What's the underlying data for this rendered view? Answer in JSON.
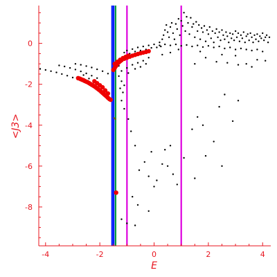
{
  "chart_data": {
    "type": "scatter",
    "xlabel": "E",
    "ylabel": "<J3>",
    "xlim": [
      -4.25,
      4.3
    ],
    "ylim": [
      -9.9,
      1.85
    ],
    "x_ticks": [
      "-4",
      "-2",
      "0",
      "2",
      "4"
    ],
    "x_tick_values": [
      -4,
      -2,
      0,
      2,
      4
    ],
    "y_ticks": [
      "0",
      "-2",
      "-4",
      "-6",
      "-8"
    ],
    "y_tick_values": [
      0,
      -2,
      -4,
      -6,
      -8
    ],
    "grid": false,
    "vertical_lines": [
      {
        "x": -1.55,
        "color": "#0018ff"
      },
      {
        "x": -1.49,
        "color": "#0018ff"
      },
      {
        "x": -1.42,
        "color": "#009a3c"
      },
      {
        "x": -1.0,
        "color": "#dd00dd"
      },
      {
        "x": 1.0,
        "color": "#dd00dd"
      }
    ],
    "series": [
      {
        "color": "#000000",
        "marker_size": "small",
        "points": [
          [
            -4.2,
            -1.25
          ],
          [
            -4.0,
            -1.3
          ],
          [
            -3.8,
            -1.36
          ],
          [
            -3.6,
            -1.42
          ],
          [
            -3.4,
            -1.5
          ],
          [
            -3.2,
            -1.58
          ],
          [
            -3.0,
            -1.67
          ],
          [
            -2.8,
            -1.77
          ],
          [
            -2.6,
            -1.88
          ],
          [
            -3.5,
            -1.08
          ],
          [
            -3.3,
            -1.13
          ],
          [
            -3.1,
            -1.2
          ],
          [
            -2.9,
            -1.28
          ],
          [
            -2.7,
            -1.37
          ],
          [
            -2.5,
            -1.47
          ],
          [
            -2.3,
            -1.58
          ],
          [
            -2.1,
            -1.7
          ],
          [
            -2.9,
            -1.0
          ],
          [
            -2.7,
            -1.05
          ],
          [
            -2.5,
            -1.11
          ],
          [
            -2.3,
            -1.18
          ],
          [
            -2.1,
            -1.27
          ],
          [
            -1.9,
            -1.36
          ],
          [
            -1.7,
            -1.48
          ],
          [
            -2.6,
            -1.55
          ],
          [
            -2.4,
            -1.72
          ],
          [
            -2.2,
            -1.9
          ],
          [
            -2.0,
            -2.1
          ],
          [
            -1.8,
            -2.3
          ],
          [
            -1.3,
            -1.1
          ],
          [
            -1.2,
            -1.35
          ],
          [
            -1.3,
            -1.6
          ],
          [
            -1.2,
            -1.85
          ],
          [
            -1.1,
            -2.05
          ],
          [
            -1.25,
            -2.2
          ],
          [
            -1.15,
            -2.4
          ],
          [
            -1.0,
            -1.2
          ],
          [
            -0.95,
            -1.45
          ],
          [
            -0.8,
            -1.05
          ],
          [
            -0.7,
            -1.25
          ],
          [
            -0.6,
            -0.95
          ],
          [
            -0.5,
            -1.15
          ],
          [
            -0.4,
            -0.85
          ],
          [
            -0.3,
            -1.0
          ],
          [
            -0.2,
            -0.7
          ],
          [
            -1.1,
            -0.45
          ],
          [
            -1.0,
            -0.35
          ],
          [
            -0.9,
            -0.5
          ],
          [
            -0.8,
            -0.28
          ],
          [
            -0.7,
            -0.4
          ],
          [
            -0.6,
            -0.2
          ],
          [
            -0.5,
            -0.35
          ],
          [
            -0.4,
            -0.15
          ],
          [
            -0.3,
            -0.3
          ],
          [
            -0.2,
            -0.1
          ],
          [
            -0.1,
            -0.22
          ],
          [
            0.0,
            -0.05
          ],
          [
            0.1,
            -0.2
          ],
          [
            0.2,
            0.05
          ],
          [
            0.25,
            -0.15
          ],
          [
            0.3,
            0.2
          ],
          [
            0.35,
            0.4
          ],
          [
            0.4,
            0.65
          ],
          [
            0.45,
            0.9
          ],
          [
            0.5,
            0.55
          ],
          [
            0.55,
            0.3
          ],
          [
            0.6,
            0.8
          ],
          [
            0.65,
            1.0
          ],
          [
            0.7,
            0.5
          ],
          [
            0.75,
            0.2
          ],
          [
            0.8,
            0.95
          ],
          [
            0.85,
            0.7
          ],
          [
            0.9,
            1.2
          ],
          [
            0.95,
            0.4
          ],
          [
            1.0,
            1.1
          ],
          [
            1.05,
            0.85
          ],
          [
            1.1,
            1.5
          ],
          [
            1.15,
            0.6
          ],
          [
            1.2,
            1.3
          ],
          [
            1.25,
            1.0
          ],
          [
            1.3,
            0.45
          ],
          [
            1.35,
            1.25
          ],
          [
            1.4,
            0.8
          ],
          [
            1.45,
            0.95
          ],
          [
            1.5,
            0.3
          ],
          [
            1.55,
            1.05
          ],
          [
            1.6,
            0.6
          ],
          [
            1.65,
            0.9
          ],
          [
            1.7,
            0.2
          ],
          [
            1.75,
            0.75
          ],
          [
            1.8,
            0.55
          ],
          [
            1.85,
            0.85
          ],
          [
            1.9,
            0.1
          ],
          [
            1.95,
            0.65
          ],
          [
            2.0,
            0.45
          ],
          [
            2.05,
            0.8
          ],
          [
            2.1,
            0.25
          ],
          [
            2.15,
            0.6
          ],
          [
            2.2,
            0.05
          ],
          [
            2.25,
            0.5
          ],
          [
            2.3,
            0.7
          ],
          [
            2.35,
            0.3
          ],
          [
            2.4,
            0.55
          ],
          [
            2.45,
            0.15
          ],
          [
            2.5,
            0.65
          ],
          [
            2.55,
            0.4
          ],
          [
            2.6,
            0.2
          ],
          [
            2.65,
            0.55
          ],
          [
            2.7,
            0.35
          ],
          [
            2.75,
            0.05
          ],
          [
            2.8,
            0.5
          ],
          [
            2.85,
            0.25
          ],
          [
            2.9,
            0.45
          ],
          [
            2.95,
            0.15
          ],
          [
            3.0,
            0.6
          ],
          [
            3.05,
            0.3
          ],
          [
            3.1,
            0.5
          ],
          [
            3.15,
            0.1
          ],
          [
            3.2,
            0.4
          ],
          [
            3.25,
            0.25
          ],
          [
            3.3,
            0.55
          ],
          [
            3.35,
            0.05
          ],
          [
            3.4,
            0.35
          ],
          [
            3.45,
            0.45
          ],
          [
            3.5,
            0.15
          ],
          [
            3.55,
            0.5
          ],
          [
            3.6,
            0.3
          ],
          [
            3.65,
            0.05
          ],
          [
            3.7,
            0.4
          ],
          [
            3.75,
            0.2
          ],
          [
            3.8,
            0.45
          ],
          [
            3.85,
            0.1
          ],
          [
            3.9,
            0.35
          ],
          [
            3.95,
            0.25
          ],
          [
            4.0,
            0.5
          ],
          [
            4.05,
            0.15
          ],
          [
            4.1,
            0.3
          ],
          [
            4.15,
            0.4
          ],
          [
            4.2,
            0.05
          ],
          [
            4.25,
            0.3
          ],
          [
            0.2,
            -0.1
          ],
          [
            0.4,
            -0.05
          ],
          [
            0.6,
            -0.1
          ],
          [
            0.8,
            -0.05
          ],
          [
            1.0,
            -0.12
          ],
          [
            1.2,
            -0.08
          ],
          [
            1.4,
            -0.15
          ],
          [
            1.6,
            -0.1
          ],
          [
            1.8,
            -0.18
          ],
          [
            2.0,
            -0.12
          ],
          [
            2.2,
            -0.2
          ],
          [
            2.4,
            -0.15
          ],
          [
            2.6,
            -0.25
          ],
          [
            2.8,
            -0.2
          ],
          [
            3.0,
            -0.3
          ],
          [
            3.2,
            -0.25
          ],
          [
            3.4,
            -0.3
          ],
          [
            3.6,
            -0.35
          ],
          [
            3.8,
            -0.3
          ],
          [
            4.0,
            -0.4
          ],
          [
            1.9,
            -0.7
          ],
          [
            2.3,
            -0.9
          ],
          [
            2.7,
            -0.95
          ],
          [
            3.1,
            -1.05
          ],
          [
            3.4,
            -1.0
          ],
          [
            3.6,
            -1.15
          ],
          [
            3.8,
            -0.8
          ],
          [
            4.1,
            -0.85
          ],
          [
            3.0,
            -0.6
          ],
          [
            2.5,
            -0.55
          ],
          [
            1.5,
            -1.0
          ],
          [
            1.7,
            -0.4
          ],
          [
            0.9,
            -0.3
          ],
          [
            0.6,
            -0.45
          ],
          [
            0.3,
            -0.55
          ],
          [
            -1.2,
            -2.8
          ],
          [
            -1.1,
            -3.2
          ],
          [
            -0.95,
            -3.7
          ],
          [
            -0.85,
            -4.3
          ],
          [
            -0.7,
            -5.0
          ],
          [
            -0.55,
            -6.2
          ],
          [
            -0.35,
            -5.8
          ],
          [
            -0.2,
            -6.5
          ],
          [
            -0.1,
            -5.3
          ],
          [
            0.0,
            -7.0
          ],
          [
            0.1,
            -6.7
          ],
          [
            0.3,
            -5.9
          ],
          [
            0.4,
            -5.2
          ],
          [
            0.5,
            -6.0
          ],
          [
            0.6,
            -5.0
          ],
          [
            0.7,
            -6.4
          ],
          [
            0.85,
            -6.9
          ],
          [
            1.1,
            -5.6
          ],
          [
            1.4,
            -4.2
          ],
          [
            1.5,
            -6.6
          ],
          [
            1.6,
            -3.6
          ],
          [
            1.8,
            -4.0
          ],
          [
            1.9,
            -5.5
          ],
          [
            2.2,
            -4.8
          ],
          [
            2.4,
            -3.1
          ],
          [
            2.5,
            -6.0
          ],
          [
            2.6,
            -2.5
          ],
          [
            2.9,
            -3.8
          ],
          [
            3.1,
            -2.8
          ],
          [
            -0.8,
            -7.5
          ],
          [
            -0.6,
            -7.9
          ],
          [
            -0.2,
            -8.2
          ],
          [
            -1.2,
            -8.6
          ],
          [
            -1.0,
            -8.8
          ],
          [
            -0.7,
            -8.9
          ]
        ]
      },
      {
        "color": "#ee0000",
        "marker_size": "large",
        "points": [
          [
            -2.8,
            -1.7
          ],
          [
            -2.75,
            -1.72
          ],
          [
            -2.7,
            -1.75
          ],
          [
            -2.65,
            -1.78
          ],
          [
            -2.6,
            -1.8
          ],
          [
            -2.55,
            -1.84
          ],
          [
            -2.5,
            -1.87
          ],
          [
            -2.45,
            -1.9
          ],
          [
            -2.4,
            -1.94
          ],
          [
            -2.35,
            -1.98
          ],
          [
            -2.3,
            -2.02
          ],
          [
            -2.25,
            -2.06
          ],
          [
            -2.2,
            -2.1
          ],
          [
            -2.15,
            -2.15
          ],
          [
            -2.1,
            -2.2
          ],
          [
            -2.05,
            -2.25
          ],
          [
            -2.0,
            -2.3
          ],
          [
            -1.95,
            -2.36
          ],
          [
            -1.9,
            -2.42
          ],
          [
            -1.85,
            -2.48
          ],
          [
            -1.8,
            -2.54
          ],
          [
            -1.75,
            -2.6
          ],
          [
            -1.7,
            -2.66
          ],
          [
            -1.65,
            -2.72
          ],
          [
            -1.6,
            -2.76
          ],
          [
            -2.2,
            -1.85
          ],
          [
            -2.1,
            -1.95
          ],
          [
            -2.0,
            -2.05
          ],
          [
            -1.9,
            -2.15
          ],
          [
            -1.8,
            -2.3
          ],
          [
            -1.7,
            -2.45
          ],
          [
            -1.5,
            -1.3
          ],
          [
            -1.45,
            -1.2
          ],
          [
            -1.4,
            -1.1
          ],
          [
            -1.35,
            -1.0
          ],
          [
            -1.3,
            -0.93
          ],
          [
            -1.25,
            -0.87
          ],
          [
            -1.2,
            -0.82
          ],
          [
            -1.1,
            -0.75
          ],
          [
            -1.0,
            -0.7
          ],
          [
            -0.9,
            -0.65
          ],
          [
            -0.8,
            -0.6
          ],
          [
            -0.7,
            -0.56
          ],
          [
            -0.6,
            -0.52
          ],
          [
            -0.5,
            -0.48
          ],
          [
            -0.4,
            -0.45
          ],
          [
            -0.3,
            -0.42
          ],
          [
            -0.2,
            -0.38
          ],
          [
            -1.45,
            -1.0
          ],
          [
            -1.35,
            -0.9
          ],
          [
            -1.25,
            -0.8
          ],
          [
            -1.15,
            -0.72
          ],
          [
            -1.05,
            -0.66
          ],
          [
            -0.95,
            -0.6
          ],
          [
            -1.4,
            -7.3
          ]
        ]
      },
      {
        "color": "#7a5a00",
        "marker_size": "small",
        "points": [
          [
            -1.47,
            -3.65
          ],
          [
            -1.43,
            -3.7
          ]
        ]
      }
    ]
  }
}
